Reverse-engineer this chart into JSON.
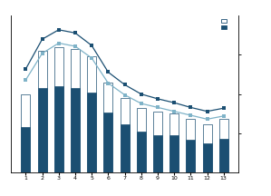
{
  "categories": [
    1,
    2,
    3,
    4,
    5,
    6,
    7,
    8,
    9,
    10,
    11,
    12,
    13
  ],
  "bar_total": [
    100,
    155,
    160,
    158,
    148,
    115,
    95,
    82,
    78,
    75,
    68,
    62,
    68
  ],
  "bar_dark": [
    58,
    108,
    110,
    108,
    102,
    77,
    62,
    52,
    48,
    47,
    42,
    37,
    43
  ],
  "line1": [
    132,
    170,
    182,
    178,
    162,
    128,
    112,
    100,
    94,
    89,
    83,
    78,
    82
  ],
  "line2": [
    118,
    152,
    165,
    161,
    146,
    114,
    99,
    88,
    83,
    78,
    73,
    68,
    72
  ],
  "bar_color_dark": "#1b4f72",
  "bar_color_light": "#ffffff",
  "bar_edgecolor": "#1b4f72",
  "line1_color": "#1b4f72",
  "line2_color": "#7fb3c8",
  "marker": "s",
  "ylim": [
    0,
    200
  ],
  "yticks_right": [
    50,
    100,
    150
  ],
  "figsize": [
    2.99,
    2.16
  ],
  "dpi": 100
}
